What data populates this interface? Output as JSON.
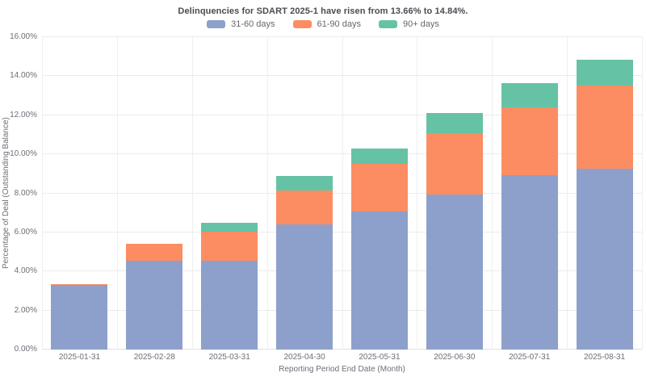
{
  "title": "Delinquencies for SDART 2025-1 have risen from 13.66% to 14.84%.",
  "chart_data": {
    "type": "bar",
    "stacked": true,
    "title": "Delinquencies for SDART 2025-1 have risen from 13.66% to 14.84%.",
    "xlabel": "Reporting Period End Date (Month)",
    "ylabel": "Percentage of Deal (Outstanding Balance)",
    "categories": [
      "2025-01-31",
      "2025-02-28",
      "2025-03-31",
      "2025-04-30",
      "2025-05-31",
      "2025-06-30",
      "2025-07-31",
      "2025-08-31"
    ],
    "series": [
      {
        "name": "31-60 days",
        "color": "#8da0cb",
        "values": [
          3.3,
          4.55,
          4.55,
          6.4,
          7.05,
          7.95,
          8.93,
          9.28
        ]
      },
      {
        "name": "61-90 days",
        "color": "#fc8d62",
        "values": [
          0.05,
          0.85,
          1.5,
          1.75,
          2.45,
          3.15,
          3.49,
          4.25
        ]
      },
      {
        "name": "90+ days",
        "color": "#66c2a5",
        "values": [
          0.0,
          0.0,
          0.45,
          0.75,
          0.8,
          1.0,
          1.24,
          1.31
        ]
      }
    ],
    "totals": [
      3.35,
      5.4,
      6.5,
      8.9,
      10.3,
      12.1,
      13.66,
      14.84
    ],
    "ylim": [
      0,
      16
    ],
    "ytick_step": 2,
    "ytick_labels": [
      "0.00%",
      "2.00%",
      "4.00%",
      "6.00%",
      "8.00%",
      "10.00%",
      "12.00%",
      "14.00%",
      "16.00%"
    ],
    "grid": true,
    "legend_position": "top-center",
    "background": "#ffffff",
    "gridline_color": "#ebebeb"
  }
}
